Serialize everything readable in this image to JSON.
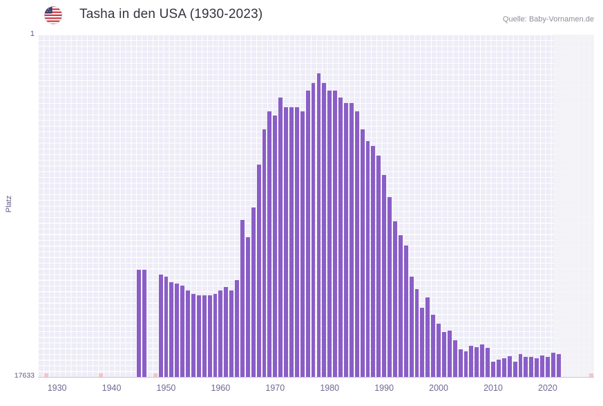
{
  "header": {
    "title": "Tasha in den USA (1930-2023)",
    "source": "Quelle: Baby-Vornamen.de"
  },
  "chart_data": {
    "type": "bar",
    "title": "Tasha in den USA (1930-2023)",
    "source": "Quelle: Baby-Vornamen.de",
    "xlabel": "",
    "ylabel": "Platz",
    "y_axis": {
      "top_label": "1",
      "bottom_label": "17633",
      "min": 1,
      "max": 17633,
      "scale": "log",
      "inverted": true
    },
    "x_axis": {
      "domain": [
        1927,
        2029
      ],
      "tick_years": [
        1930,
        1940,
        1950,
        1960,
        1970,
        1980,
        1990,
        2000,
        2010,
        2020
      ]
    },
    "grid": true,
    "legend": "none",
    "bar_color": "#8a5ec6",
    "background_grid_color": "#edecf7",
    "no_data_marker_color": "#f3c4c9",
    "no_data_marker_years": [
      1928,
      1938,
      1948,
      1958,
      1967,
      1982,
      1990,
      1999,
      2009,
      2016,
      2020,
      2028
    ],
    "highlight_band": {
      "from_year": 2021.5,
      "color": "rgba(243,243,247,0.78)"
    },
    "series": [
      {
        "name": "Platz",
        "years": [
          1945,
          1946,
          1949,
          1950,
          1951,
          1952,
          1953,
          1954,
          1955,
          1956,
          1957,
          1958,
          1959,
          1960,
          1961,
          1962,
          1963,
          1964,
          1965,
          1966,
          1967,
          1968,
          1969,
          1970,
          1971,
          1972,
          1973,
          1974,
          1975,
          1976,
          1977,
          1978,
          1979,
          1980,
          1981,
          1982,
          1983,
          1984,
          1985,
          1986,
          1987,
          1988,
          1989,
          1990,
          1991,
          1992,
          1993,
          1994,
          1995,
          1996,
          1997,
          1998,
          1999,
          2000,
          2001,
          2002,
          2003,
          2004,
          2005,
          2006,
          2007,
          2008,
          2009,
          2010,
          2011,
          2012,
          2013,
          2014,
          2015,
          2016,
          2017,
          2018,
          2019,
          2020,
          2021,
          2022
        ],
        "ranks": [
          824,
          824,
          946,
          1004,
          1176,
          1223,
          1298,
          1490,
          1645,
          1711,
          1711,
          1711,
          1645,
          1490,
          1350,
          1490,
          1109,
          199,
          326,
          140,
          41,
          15,
          9,
          10,
          6,
          8,
          8,
          8,
          9,
          5,
          4,
          3,
          4,
          5,
          5,
          6,
          7,
          7,
          9,
          15,
          21,
          24,
          32,
          55,
          104,
          207,
          307,
          413,
          1004,
          1434,
          2451,
          1816,
          2981,
          3855,
          4887,
          4698,
          6193,
          8008,
          8497,
          7255,
          7547,
          6974,
          7622,
          11422,
          10764,
          10347,
          9752,
          11422,
          9191,
          9947,
          9947,
          10347,
          9561,
          9947,
          8842,
          9191
        ]
      }
    ]
  }
}
